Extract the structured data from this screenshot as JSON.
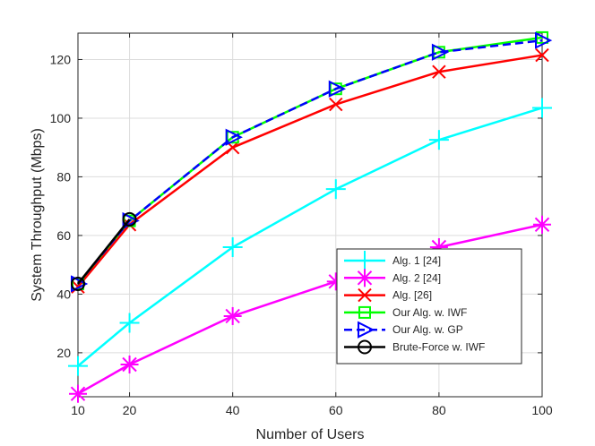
{
  "chart_data": {
    "type": "line",
    "title": "",
    "xlabel": "Number of Users",
    "ylabel": "System Throughput (Mbps)",
    "xlim": [
      10,
      100
    ],
    "ylim": [
      5,
      129
    ],
    "grid": true,
    "legend_position": "bottom-right",
    "x_ticks": [
      10,
      20,
      40,
      60,
      80,
      100
    ],
    "y_ticks": [
      20,
      40,
      60,
      80,
      100,
      120
    ],
    "series": [
      {
        "name": "Alg. 1 [24]",
        "color": "#00ffff",
        "marker": "plus",
        "dashed": false,
        "x": [
          10,
          20,
          40,
          60,
          80,
          100
        ],
        "values": [
          15.5,
          30.2,
          56.0,
          75.8,
          92.6,
          103.5
        ]
      },
      {
        "name": "Alg. 2 [24]",
        "color": "#ff00ff",
        "marker": "asterisk",
        "dashed": false,
        "x": [
          10,
          20,
          40,
          60,
          80,
          100
        ],
        "values": [
          6.0,
          16.0,
          32.5,
          44.3,
          56.0,
          63.7
        ]
      },
      {
        "name": "Alg. [26]",
        "color": "#ff0000",
        "marker": "cross",
        "dashed": false,
        "x": [
          10,
          20,
          40,
          60,
          80,
          100
        ],
        "values": [
          42.5,
          63.7,
          90.0,
          104.7,
          115.8,
          121.5
        ]
      },
      {
        "name": "Our Alg. w. IWF",
        "color": "#00ff00",
        "marker": "square",
        "dashed": false,
        "x": [
          10,
          20,
          40,
          60,
          80,
          100
        ],
        "values": [
          43.5,
          65.0,
          93.5,
          110.0,
          122.5,
          127.5
        ]
      },
      {
        "name": "Our Alg. w. GP",
        "color": "#0000ff",
        "marker": "triangle-right",
        "dashed": true,
        "x": [
          10,
          20,
          40,
          60,
          80,
          100
        ],
        "values": [
          43.5,
          65.0,
          93.5,
          110.0,
          122.5,
          126.5
        ]
      },
      {
        "name": "Brute-Force w. IWF",
        "color": "#000000",
        "marker": "circle",
        "dashed": false,
        "x": [
          10,
          20
        ],
        "values": [
          43.5,
          65.5
        ]
      }
    ]
  }
}
